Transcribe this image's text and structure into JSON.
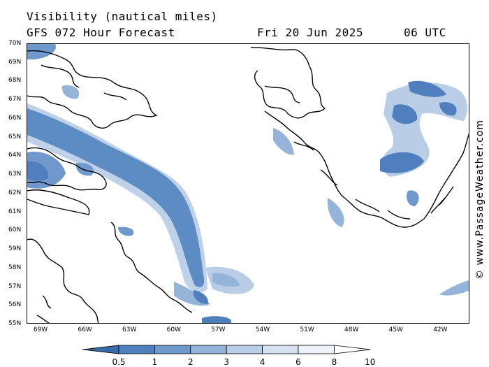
{
  "header": {
    "title": "Visibility (nautical miles)",
    "model": "GFS 072 Hour Forecast",
    "date": "Fri 20 Jun 2025",
    "time": "06 UTC"
  },
  "credit": "© www.PassageWeather.com",
  "lat_labels": [
    "70N",
    "69N",
    "68N",
    "67N",
    "66N",
    "65N",
    "64N",
    "63N",
    "62N",
    "61N",
    "60N",
    "59N",
    "58N",
    "57N",
    "56N",
    "55N"
  ],
  "lon_labels": [
    "69W",
    "66W",
    "63W",
    "60W",
    "57W",
    "54W",
    "51W",
    "48W",
    "45W",
    "42W"
  ],
  "legend": {
    "labels": [
      "0.5",
      "1",
      "2",
      "3",
      "4",
      "6",
      "8",
      "10"
    ],
    "colors": [
      "#3a6aa8",
      "#4f80bd",
      "#6f98cc",
      "#95b4da",
      "#b9cde6",
      "#d6e2f1",
      "#eef3fa",
      "#ffffff"
    ]
  }
}
